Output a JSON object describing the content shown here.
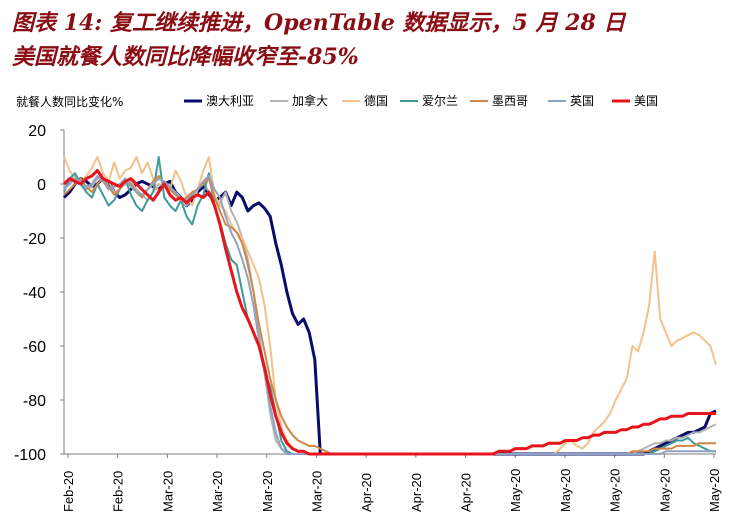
{
  "title_line1": "图表 14: 复工继续推进，OpenTable 数据显示，5 月 28 日",
  "title_line2": "美国就餐人数同比降幅收窄至-85%",
  "chart_data": {
    "type": "line",
    "ylabel": "就餐人数同比变化%",
    "ylim": [
      -100,
      20
    ],
    "yticks": [
      20,
      0,
      -20,
      -40,
      -60,
      -80,
      -100
    ],
    "x": [
      1,
      2,
      3,
      4,
      5,
      6,
      7,
      8,
      9,
      10,
      11,
      12,
      13,
      14,
      15,
      16,
      17,
      18,
      19,
      20,
      21,
      22,
      23,
      24,
      25,
      26,
      27,
      28,
      29,
      30,
      31,
      32,
      33,
      34,
      35,
      36,
      37,
      38,
      39,
      40,
      41,
      42,
      43,
      44,
      45,
      46,
      47,
      48,
      49,
      50,
      51,
      52,
      53,
      54,
      55,
      56,
      57,
      58,
      59,
      60,
      61,
      62,
      63,
      64,
      65,
      66,
      67,
      68,
      69,
      70,
      71,
      72,
      73,
      74,
      75,
      76,
      77,
      78,
      79,
      80,
      81,
      82,
      83,
      84,
      85,
      86,
      87,
      88,
      89,
      90,
      91,
      92,
      93,
      94,
      95,
      96,
      97,
      98,
      99,
      100,
      101,
      102,
      103,
      104,
      105,
      106,
      107,
      108,
      109,
      110,
      111,
      112,
      113,
      114,
      115,
      116,
      117,
      118
    ],
    "xtick_labels": [
      "Feb-20",
      "Feb-20",
      "Mar-20",
      "Mar-20",
      "Mar-20",
      "Mar-20",
      "Apr-20",
      "Apr-20",
      "Apr-20",
      "May-20",
      "May-20",
      "May-20",
      "May-20",
      "May-20"
    ],
    "series": [
      {
        "name": "澳大利亚",
        "color": "#0b0b6b",
        "values": [
          -5,
          -3,
          0,
          2,
          1,
          -1,
          0,
          2,
          1,
          -3,
          -5,
          -4,
          -2,
          0,
          1,
          0,
          -1,
          -2,
          0,
          1,
          -3,
          -5,
          -8,
          -6,
          -3,
          -1,
          -4,
          -6,
          -5,
          -3,
          -8,
          -3,
          -5,
          -10,
          -8,
          -7,
          -9,
          -12,
          -22,
          -30,
          -40,
          -48,
          -52,
          -50,
          -55,
          -65,
          -100,
          -100,
          -100,
          -100,
          -100,
          -100,
          -100,
          -100,
          -100,
          -100,
          -100,
          -100,
          -100,
          -100,
          -100,
          -100,
          -100,
          -100,
          -100,
          -100,
          -100,
          -100,
          -100,
          -100,
          -100,
          -100,
          -100,
          -100,
          -100,
          -100,
          -100,
          -100,
          -100,
          -100,
          -100,
          -100,
          -100,
          -100,
          -100,
          -100,
          -100,
          -100,
          -100,
          -100,
          -100,
          -100,
          -100,
          -100,
          -100,
          -100,
          -100,
          -100,
          -100,
          -100,
          -100,
          -100,
          -100,
          -100,
          -100,
          -99,
          -98,
          -97,
          -96,
          -95,
          -94,
          -93,
          -92,
          -92,
          -91,
          -90,
          -85,
          -84
        ]
      },
      {
        "name": "加拿大",
        "color": "#b3b3b3",
        "values": [
          -2,
          1,
          3,
          0,
          -2,
          -1,
          2,
          4,
          1,
          -3,
          -2,
          0,
          1,
          -2,
          -4,
          -6,
          -3,
          0,
          -1,
          -2,
          -4,
          -6,
          -8,
          -5,
          -2,
          1,
          -3,
          -5,
          -7,
          -3,
          -10,
          -14,
          -20,
          -28,
          -40,
          -55,
          -70,
          -85,
          -95,
          -98,
          -99,
          -100,
          -100,
          -100,
          -100,
          -100,
          -100,
          -100,
          -100,
          -100,
          -100,
          -100,
          -100,
          -100,
          -100,
          -100,
          -100,
          -100,
          -100,
          -100,
          -100,
          -100,
          -100,
          -100,
          -100,
          -100,
          -100,
          -100,
          -100,
          -100,
          -100,
          -100,
          -100,
          -100,
          -100,
          -100,
          -100,
          -100,
          -100,
          -100,
          -100,
          -100,
          -100,
          -100,
          -100,
          -100,
          -100,
          -100,
          -100,
          -100,
          -100,
          -100,
          -100,
          -100,
          -100,
          -100,
          -100,
          -100,
          -100,
          -100,
          -100,
          -100,
          -100,
          -99,
          -98,
          -97,
          -96,
          -96,
          -95,
          -95,
          -94,
          -94,
          -93,
          -92,
          -92,
          -91,
          -90,
          -89
        ]
      },
      {
        "name": "德国",
        "color": "#f5c08a",
        "values": [
          10,
          5,
          2,
          0,
          3,
          6,
          10,
          4,
          1,
          8,
          2,
          5,
          6,
          10,
          4,
          8,
          2,
          -3,
          0,
          -2,
          5,
          1,
          -5,
          -8,
          -2,
          5,
          10,
          -4,
          -8,
          -10,
          -15,
          -18,
          -20,
          -25,
          -30,
          -35,
          -45,
          -60,
          -80,
          -90,
          -95,
          -98,
          -99,
          -100,
          -100,
          -100,
          -100,
          -100,
          -100,
          -100,
          -100,
          -100,
          -100,
          -100,
          -100,
          -100,
          -100,
          -100,
          -100,
          -100,
          -100,
          -100,
          -100,
          -100,
          -100,
          -100,
          -100,
          -100,
          -100,
          -100,
          -100,
          -100,
          -100,
          -100,
          -100,
          -100,
          -100,
          -100,
          -100,
          -100,
          -100,
          -100,
          -100,
          -100,
          -100,
          -100,
          -100,
          -100,
          -100,
          -98,
          -96,
          -95,
          -97,
          -98,
          -96,
          -92,
          -90,
          -88,
          -85,
          -80,
          -76,
          -72,
          -60,
          -62,
          -55,
          -45,
          -25,
          -50,
          -55,
          -60,
          -58,
          -57,
          -56,
          -55,
          -56,
          -58,
          -60,
          -67
        ]
      },
      {
        "name": "爱尔兰",
        "color": "#3f9a9a",
        "values": [
          -3,
          2,
          4,
          0,
          -3,
          -5,
          0,
          -4,
          -8,
          -6,
          -2,
          2,
          -4,
          -8,
          -10,
          -6,
          -3,
          10,
          -5,
          -8,
          -10,
          -6,
          -12,
          -15,
          -8,
          -4,
          4,
          -8,
          -14,
          -22,
          -28,
          -30,
          -40,
          -50,
          -55,
          -60,
          -70,
          -75,
          -85,
          -95,
          -99,
          -100,
          -100,
          -100,
          -100,
          -100,
          -100,
          -100,
          -100,
          -100,
          -100,
          -100,
          -100,
          -100,
          -100,
          -100,
          -100,
          -100,
          -100,
          -100,
          -100,
          -100,
          -100,
          -100,
          -100,
          -100,
          -100,
          -100,
          -100,
          -100,
          -100,
          -100,
          -100,
          -100,
          -100,
          -100,
          -100,
          -100,
          -100,
          -100,
          -100,
          -100,
          -100,
          -100,
          -100,
          -100,
          -100,
          -100,
          -100,
          -100,
          -100,
          -100,
          -100,
          -100,
          -100,
          -100,
          -100,
          -100,
          -100,
          -100,
          -100,
          -100,
          -100,
          -100,
          -100,
          -100,
          -99,
          -98,
          -97,
          -96,
          -95,
          -95,
          -94,
          -96,
          -97,
          -98,
          -99,
          -99
        ]
      },
      {
        "name": "墨西哥",
        "color": "#d0874a",
        "values": [
          -4,
          -2,
          0,
          2,
          -1,
          -3,
          0,
          2,
          -1,
          -4,
          -2,
          1,
          0,
          -3,
          -5,
          -2,
          1,
          3,
          0,
          -2,
          -4,
          -6,
          -5,
          -3,
          -2,
          0,
          2,
          -5,
          -10,
          -15,
          -16,
          -18,
          -22,
          -30,
          -40,
          -52,
          -62,
          -72,
          -80,
          -86,
          -90,
          -93,
          -95,
          -96,
          -97,
          -97,
          -98,
          -99,
          -100,
          -100,
          -100,
          -100,
          -100,
          -100,
          -100,
          -100,
          -100,
          -100,
          -100,
          -100,
          -100,
          -100,
          -100,
          -100,
          -100,
          -100,
          -100,
          -100,
          -100,
          -100,
          -100,
          -100,
          -100,
          -100,
          -100,
          -100,
          -100,
          -100,
          -100,
          -100,
          -100,
          -100,
          -100,
          -100,
          -100,
          -100,
          -100,
          -100,
          -100,
          -100,
          -100,
          -100,
          -100,
          -100,
          -100,
          -100,
          -100,
          -100,
          -100,
          -100,
          -100,
          -100,
          -99,
          -99,
          -99,
          -99,
          -98,
          -98,
          -98,
          -98,
          -97,
          -97,
          -97,
          -97,
          -96,
          -96,
          -96,
          -96
        ]
      },
      {
        "name": "英国",
        "color": "#8ea3c3",
        "values": [
          -2,
          0,
          2,
          1,
          -1,
          0,
          3,
          1,
          -2,
          -1,
          0,
          2,
          -1,
          -3,
          -4,
          -2,
          0,
          2,
          1,
          -1,
          -3,
          -5,
          -6,
          -4,
          -2,
          1,
          3,
          -2,
          -5,
          -12,
          -18,
          -22,
          -28,
          -35,
          -45,
          -58,
          -70,
          -82,
          -92,
          -98,
          -100,
          -100,
          -100,
          -100,
          -100,
          -100,
          -100,
          -100,
          -100,
          -100,
          -100,
          -100,
          -100,
          -100,
          -100,
          -100,
          -100,
          -100,
          -100,
          -100,
          -100,
          -100,
          -100,
          -100,
          -100,
          -100,
          -100,
          -100,
          -100,
          -100,
          -100,
          -100,
          -100,
          -100,
          -100,
          -100,
          -100,
          -100,
          -100,
          -100,
          -100,
          -100,
          -100,
          -100,
          -100,
          -100,
          -100,
          -100,
          -100,
          -100,
          -100,
          -100,
          -100,
          -100,
          -100,
          -100,
          -100,
          -100,
          -100,
          -100,
          -100,
          -100,
          -100,
          -100,
          -100,
          -100,
          -100,
          -100,
          -99,
          -99,
          -99,
          -99,
          -99,
          -99,
          -99,
          -99,
          -99,
          -99
        ]
      },
      {
        "name": "美国",
        "color": "#e8141c",
        "values": [
          0,
          2,
          1,
          0,
          2,
          3,
          5,
          2,
          1,
          0,
          -1,
          1,
          2,
          0,
          -2,
          -4,
          -6,
          -3,
          0,
          -4,
          -6,
          -5,
          -7,
          -5,
          -4,
          -5,
          -3,
          -8,
          -15,
          -24,
          -32,
          -40,
          -46,
          -50,
          -55,
          -60,
          -68,
          -78,
          -86,
          -92,
          -96,
          -98,
          -99,
          -99,
          -100,
          -100,
          -100,
          -100,
          -100,
          -100,
          -100,
          -100,
          -100,
          -100,
          -100,
          -100,
          -100,
          -100,
          -100,
          -100,
          -100,
          -100,
          -100,
          -100,
          -100,
          -100,
          -100,
          -100,
          -100,
          -100,
          -100,
          -100,
          -100,
          -100,
          -100,
          -100,
          -100,
          -100,
          -99,
          -99,
          -99,
          -98,
          -98,
          -98,
          -97,
          -97,
          -97,
          -96,
          -96,
          -96,
          -95,
          -95,
          -95,
          -94,
          -94,
          -93,
          -93,
          -92,
          -92,
          -92,
          -91,
          -91,
          -90,
          -90,
          -89,
          -89,
          -88,
          -87,
          -87,
          -86,
          -86,
          -86,
          -85,
          -85,
          -85,
          -85,
          -85,
          -85
        ]
      }
    ]
  }
}
